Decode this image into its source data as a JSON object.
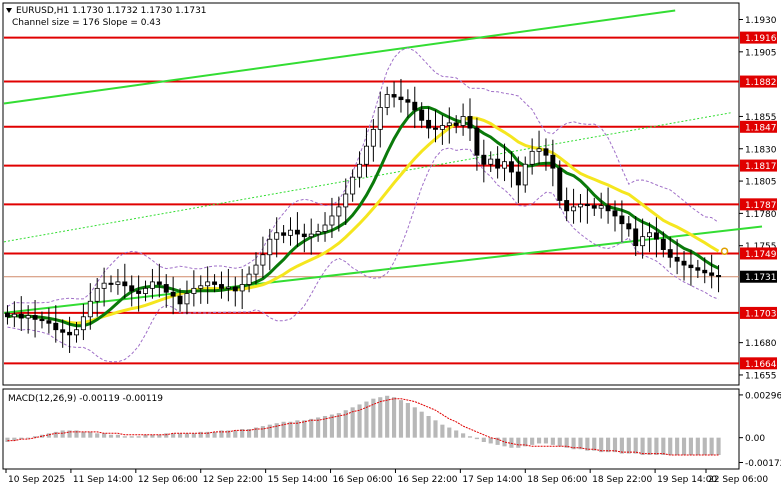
{
  "chart_data": {
    "type": "candlestick",
    "header": {
      "symbol_line": "EURUSD,H1  1.1730 1.1732 1.1730 1.1731",
      "indicator_line": "Channel size = 176 Slope = 0.43"
    },
    "price_axis": {
      "ticks": [
        1.193,
        1.1905,
        1.1855,
        1.183,
        1.1805,
        1.178,
        1.1755,
        1.168,
        1.1655
      ],
      "ylim": [
        1.1648,
        1.1942
      ],
      "current_price": 1.1731
    },
    "time_axis": {
      "labels": [
        "10 Sep 2025",
        "11 Sep 14:00",
        "12 Sep 06:00",
        "12 Sep 22:00",
        "15 Sep 14:00",
        "16 Sep 06:00",
        "16 Sep 22:00",
        "17 Sep 14:00",
        "18 Sep 06:00",
        "18 Sep 22:00",
        "19 Sep 14:00",
        "22 Sep 06:00"
      ]
    },
    "levels": [
      1.1916,
      1.1882,
      1.1847,
      1.1817,
      1.1787,
      1.1749,
      1.1703,
      1.1664
    ],
    "level_color": "#e00000",
    "candle_color": "#000000",
    "ma_fast_color": "#0a7a0a",
    "ma_slow_color": "#f5e61e",
    "channel_color": "#33dd33",
    "series_close": [
      1.17,
      1.1702,
      1.1699,
      1.1701,
      1.1698,
      1.1697,
      1.1695,
      1.169,
      1.1688,
      1.1686,
      1.169,
      1.17,
      1.1712,
      1.1722,
      1.1726,
      1.1725,
      1.1727,
      1.1724,
      1.172,
      1.1718,
      1.1722,
      1.1727,
      1.1725,
      1.1719,
      1.1716,
      1.171,
      1.1718,
      1.1722,
      1.1724,
      1.1727,
      1.1725,
      1.1722,
      1.1723,
      1.172,
      1.1725,
      1.1733,
      1.174,
      1.1748,
      1.176,
      1.1765,
      1.1763,
      1.1767,
      1.1764,
      1.1762,
      1.1764,
      1.1766,
      1.1771,
      1.1778,
      1.1785,
      1.1795,
      1.1808,
      1.1818,
      1.1832,
      1.1845,
      1.1862,
      1.1872,
      1.187,
      1.1868,
      1.1866,
      1.186,
      1.1852,
      1.1846,
      1.1845,
      1.1848,
      1.185,
      1.1848,
      1.1855,
      1.1846,
      1.1825,
      1.1818,
      1.1822,
      1.1815,
      1.182,
      1.1812,
      1.1802,
      1.1818,
      1.1828,
      1.183,
      1.1825,
      1.1815,
      1.179,
      1.1782,
      1.1785,
      1.1787,
      1.1786,
      1.1784,
      1.1786,
      1.1782,
      1.1778,
      1.1772,
      1.1768,
      1.1755,
      1.1762,
      1.1765,
      1.176,
      1.1752,
      1.1746,
      1.1743,
      1.174,
      1.1738,
      1.1736,
      1.1734,
      1.1732,
      1.1731
    ],
    "macd": {
      "label": "MACD(12,26,9) -0.00119 -0.00119",
      "ticks": [
        0.00296,
        0.0,
        -0.00172
      ],
      "ylim": [
        -0.0021,
        0.0033
      ],
      "hist": [
        -0.0003,
        -0.0002,
        -0.0001,
        0.0,
        0.0001,
        0.0002,
        0.0003,
        0.0004,
        0.0005,
        0.0005,
        0.0005,
        0.0004,
        0.0004,
        0.0003,
        0.0003,
        0.0002,
        0.0002,
        0.0001,
        0.0001,
        0.0001,
        0.0002,
        0.0002,
        0.0002,
        0.0003,
        0.0003,
        0.0003,
        0.0003,
        0.0003,
        0.0004,
        0.0004,
        0.0004,
        0.0005,
        0.0005,
        0.0005,
        0.0006,
        0.0006,
        0.0007,
        0.0008,
        0.0009,
        0.001,
        0.0011,
        0.0011,
        0.0012,
        0.0012,
        0.0013,
        0.0014,
        0.0015,
        0.0016,
        0.0017,
        0.0019,
        0.0021,
        0.0023,
        0.0025,
        0.0027,
        0.0028,
        0.0029,
        0.0028,
        0.0026,
        0.0024,
        0.0021,
        0.0018,
        0.0015,
        0.0012,
        0.0009,
        0.0007,
        0.0005,
        0.0003,
        0.0001,
        -0.0001,
        -0.0003,
        -0.0004,
        -0.0005,
        -0.0006,
        -0.0007,
        -0.0007,
        -0.0006,
        -0.0005,
        -0.0004,
        -0.0004,
        -0.0005,
        -0.0006,
        -0.0007,
        -0.0008,
        -0.0008,
        -0.0009,
        -0.0009,
        -0.001,
        -0.001,
        -0.001,
        -0.0011,
        -0.0011,
        -0.0011,
        -0.0012,
        -0.0012,
        -0.0012,
        -0.0012,
        -0.0012,
        -0.0012,
        -0.0012,
        -0.0012,
        -0.0012,
        -0.0012,
        -0.0012,
        -0.0012
      ],
      "signal": [
        -0.0002,
        -0.0002,
        -0.0001,
        -0.0001,
        0.0,
        0.0001,
        0.0002,
        0.0003,
        0.0003,
        0.0004,
        0.0004,
        0.0004,
        0.0004,
        0.0004,
        0.0003,
        0.0003,
        0.0003,
        0.0002,
        0.0002,
        0.0002,
        0.0002,
        0.0002,
        0.0002,
        0.0002,
        0.0003,
        0.0003,
        0.0003,
        0.0003,
        0.0003,
        0.0003,
        0.0004,
        0.0004,
        0.0004,
        0.0005,
        0.0005,
        0.0005,
        0.0006,
        0.0006,
        0.0007,
        0.0008,
        0.0009,
        0.001,
        0.001,
        0.0011,
        0.0012,
        0.0012,
        0.0013,
        0.0014,
        0.0015,
        0.0016,
        0.0018,
        0.0019,
        0.0021,
        0.0023,
        0.0025,
        0.0026,
        0.0027,
        0.0027,
        0.0026,
        0.0025,
        0.0023,
        0.0021,
        0.0019,
        0.0016,
        0.0013,
        0.0011,
        0.0008,
        0.0006,
        0.0004,
        0.0002,
        0.0,
        -0.0001,
        -0.0003,
        -0.0004,
        -0.0005,
        -0.0005,
        -0.0006,
        -0.0006,
        -0.0006,
        -0.0006,
        -0.0006,
        -0.0006,
        -0.0007,
        -0.0007,
        -0.0008,
        -0.0008,
        -0.0009,
        -0.0009,
        -0.0009,
        -0.001,
        -0.001,
        -0.001,
        -0.0011,
        -0.0011,
        -0.0011,
        -0.0011,
        -0.0012,
        -0.0012,
        -0.0012,
        -0.0012,
        -0.0012,
        -0.0012,
        -0.0012,
        -0.0012
      ]
    }
  }
}
